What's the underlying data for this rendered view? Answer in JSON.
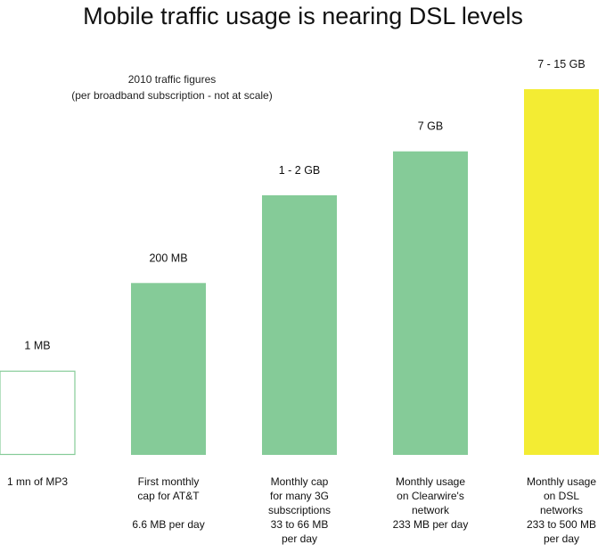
{
  "chart_data": {
    "type": "bar",
    "title": "Mobile traffic usage is nearing DSL levels",
    "subtitle": [
      "2010 traffic figures",
      "(per broadband subscription - not at scale)"
    ],
    "note": "not at scale",
    "xlabel": "",
    "ylabel": "",
    "colors": {
      "default": "#85cb98",
      "outline": "#85cb98",
      "highlight": "#f3ec33"
    },
    "bars": [
      {
        "value_label": "1 MB",
        "category": [
          "1 mn of MP3"
        ],
        "style": "outline",
        "relative_height": 0.23
      },
      {
        "value_label": "200 MB",
        "category": [
          "First monthly",
          "cap for AT&T",
          "",
          "6.6 MB per day"
        ],
        "style": "filled",
        "relative_height": 0.47
      },
      {
        "value_label": "1 - 2 GB",
        "category": [
          "Monthly cap",
          "for many 3G",
          "subscriptions",
          "33 to 66 MB",
          "per day"
        ],
        "style": "filled",
        "relative_height": 0.71
      },
      {
        "value_label": "7 GB",
        "category": [
          "Monthly usage",
          "on Clearwire's",
          "network",
          "233 MB per day"
        ],
        "style": "filled",
        "relative_height": 0.83
      },
      {
        "value_label": "7 - 15 GB",
        "category": [
          "Monthly usage",
          "on DSL",
          "networks",
          "233 to 500 MB",
          "per day"
        ],
        "style": "highlight",
        "relative_height": 1.0
      }
    ]
  }
}
